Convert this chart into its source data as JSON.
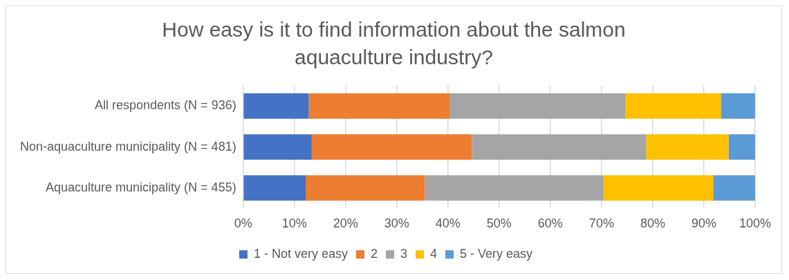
{
  "chart_data": {
    "type": "bar",
    "orientation": "horizontal",
    "stacked": true,
    "title": "How easy is it to find information about the salmon aquaculture industry?",
    "categories": [
      "All respondents (N = 936)",
      "Non-aquaculture municipality (N = 481)",
      "Aquaculture municipality (N = 455)"
    ],
    "series": [
      {
        "name": "1 - Not very easy",
        "color": "#4472c4",
        "values": [
          12.8,
          13.4,
          12.2
        ]
      },
      {
        "name": "2",
        "color": "#ed7d31",
        "values": [
          27.5,
          31.3,
          23.3
        ]
      },
      {
        "name": "3",
        "color": "#a5a5a5",
        "values": [
          34.4,
          34.0,
          34.9
        ]
      },
      {
        "name": "4",
        "color": "#ffc000",
        "values": [
          18.6,
          16.1,
          21.4
        ]
      },
      {
        "name": "5 - Very easy",
        "color": "#5b9bd5",
        "values": [
          6.7,
          5.2,
          8.2
        ]
      }
    ],
    "xlim": [
      0,
      100
    ],
    "xticks": [
      {
        "value": 0,
        "label": "0%"
      },
      {
        "value": 10,
        "label": "10%"
      },
      {
        "value": 20,
        "label": "20%"
      },
      {
        "value": 30,
        "label": "30%"
      },
      {
        "value": 40,
        "label": "40%"
      },
      {
        "value": 50,
        "label": "50%"
      },
      {
        "value": 60,
        "label": "60%"
      },
      {
        "value": 70,
        "label": "70%"
      },
      {
        "value": 80,
        "label": "80%"
      },
      {
        "value": 90,
        "label": "90%"
      },
      {
        "value": 100,
        "label": "100%"
      }
    ],
    "grid": "x",
    "legend": "bottom"
  }
}
